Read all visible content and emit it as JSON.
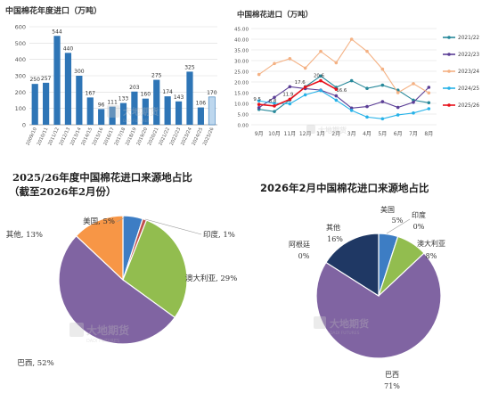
{
  "chart_data": [
    {
      "type": "bar",
      "title": "中国棉花年度进口（万吨）",
      "categories": [
        "2009/10",
        "2010/11",
        "2011/12",
        "2012/13",
        "2013/14",
        "2014/15",
        "2015/16",
        "2016/17",
        "2017/18",
        "2018/19",
        "2019/20",
        "2020/21",
        "2021/22",
        "2022/23",
        "2023/24",
        "2024/25",
        "2025/26"
      ],
      "values": [
        250,
        257,
        544,
        440,
        300,
        167,
        96,
        111,
        133,
        203,
        160,
        275,
        174,
        143,
        325,
        106,
        170
      ],
      "ylim": [
        0,
        600
      ],
      "yticks": [
        "0",
        "100",
        "200",
        "300",
        "400",
        "500",
        "600"
      ],
      "grid": true,
      "highlight_last": true,
      "colors": {
        "bar": "#2e75b6",
        "bar_last": "#bdd7ee",
        "grid": "#d9d9d9",
        "label": "#333333"
      }
    },
    {
      "type": "line",
      "title": "中国棉花进口（万吨）",
      "categories": [
        "9月",
        "10月",
        "11月",
        "12月",
        "1月",
        "2月",
        "3月",
        "4月",
        "5月",
        "6月",
        "7月",
        "8月"
      ],
      "ylim": [
        0,
        45
      ],
      "yticks": [
        "0.00",
        "5.00",
        "10.00",
        "15.00",
        "20.00",
        "25.00",
        "30.00",
        "35.00",
        "40.00",
        "45.00"
      ],
      "grid": true,
      "legend_position": "right",
      "series": [
        {
          "name": "2021/22",
          "color": "#26889a",
          "values": [
            7.2,
            6.2,
            11.6,
            17.8,
            22.8,
            17.5,
            20.6,
            17.0,
            18.5,
            16.2,
            11.5,
            10.3
          ]
        },
        {
          "name": "2022/23",
          "color": "#5b3e96",
          "values": [
            8.0,
            12.8,
            17.8,
            16.9,
            16.2,
            13.5,
            7.8,
            8.5,
            10.8,
            8.1,
            10.5,
            17.5
          ]
        },
        {
          "name": "2023/24",
          "color": "#f4b183",
          "values": [
            23.5,
            28.6,
            30.9,
            26.5,
            34.3,
            29.0,
            40.0,
            34.3,
            26.0,
            15.0,
            19.2,
            14.9
          ]
        },
        {
          "name": "2024/25",
          "color": "#27b2e8",
          "values": [
            11.2,
            10.0,
            9.8,
            14.0,
            16.0,
            11.5,
            6.7,
            3.6,
            2.8,
            4.6,
            5.5,
            7.5
          ]
        },
        {
          "name": "2025/26",
          "color": "#e8111a",
          "values": [
            9.5,
            8.8,
            11.9,
            17.6,
            20.6,
            16.6,
            null,
            null,
            null,
            null,
            null,
            null
          ]
        }
      ],
      "data_labels": [
        "9.5",
        "8.8",
        "11.9",
        "17.6",
        "20.6",
        "16.6"
      ]
    },
    {
      "type": "pie",
      "title": "2025/26年度中国棉花进口来源地占比",
      "subtitle": "（截至2026年2月份）",
      "slices": [
        {
          "label": "美国",
          "value": 5,
          "text": "美国, 5%",
          "color": "#3d7dc4"
        },
        {
          "label": "印度",
          "value": 1,
          "text": "印度, 1%",
          "color": "#c0504d"
        },
        {
          "label": "澳大利亚",
          "value": 29,
          "text": "澳大利亚, 29%",
          "color": "#92bd4f"
        },
        {
          "label": "巴西",
          "value": 52,
          "text": "巴西, 52%",
          "color": "#8064a2"
        },
        {
          "label": "其他",
          "value": 13,
          "text": "其他, 13%",
          "color": "#f79646"
        }
      ]
    },
    {
      "type": "pie",
      "title": "2026年2月中国棉花进口来源地占比",
      "slices": [
        {
          "label": "美国",
          "value": 5,
          "pct": "5%",
          "color": "#3d7dc4"
        },
        {
          "label": "印度",
          "value": 0,
          "pct": "0%",
          "color": "#c0504d"
        },
        {
          "label": "澳大利亚",
          "value": 8,
          "pct": "8%",
          "color": "#92bd4f"
        },
        {
          "label": "巴西",
          "value": 71,
          "pct": "71%",
          "color": "#8064a2"
        },
        {
          "label": "阿根廷",
          "value": 0,
          "pct": "0%",
          "color": "#4bacc6"
        },
        {
          "label": "其他",
          "value": 16,
          "pct": "16%",
          "color": "#1f3864"
        }
      ]
    }
  ],
  "watermark": {
    "cn": "大地期货",
    "en": "DADI FUTURES"
  }
}
